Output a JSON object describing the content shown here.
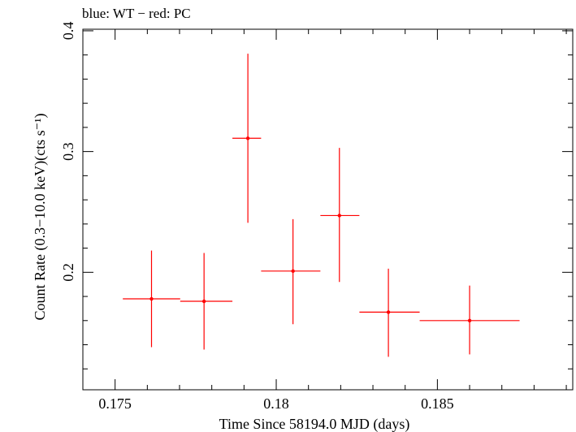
{
  "chart_data": {
    "type": "scatter",
    "title": "blue: WT − red: PC",
    "xlabel": "Time Since 58194.0 MJD (days)",
    "ylabel": "Count Rate (0.3−10.0 keV)(cts s⁻¹)",
    "xlim": [
      0.174,
      0.1892
    ],
    "ylim": [
      0.1027,
      0.4013
    ],
    "x_ticks": [
      {
        "value": 0.175,
        "label": "0.175"
      },
      {
        "value": 0.18,
        "label": "0.18"
      },
      {
        "value": 0.185,
        "label": "0.185"
      }
    ],
    "y_ticks": [
      {
        "value": 0.2,
        "label": "0.2"
      },
      {
        "value": 0.3,
        "label": "0.3"
      },
      {
        "value": 0.4,
        "label": "0.4"
      }
    ],
    "x_minor_step": 0.001,
    "y_minor_step": 0.02,
    "grid": false,
    "series": [
      {
        "name": "PC",
        "color": "#ff0000",
        "points": [
          {
            "x": 0.17613,
            "y": 0.178,
            "x_minus": 0.17524,
            "x_plus": 0.17702,
            "y_minus": 0.138,
            "y_plus": 0.218
          },
          {
            "x": 0.17776,
            "y": 0.176,
            "x_minus": 0.17702,
            "x_plus": 0.17864,
            "y_minus": 0.136,
            "y_plus": 0.216
          },
          {
            "x": 0.17912,
            "y": 0.311,
            "x_minus": 0.17864,
            "x_plus": 0.17953,
            "y_minus": 0.241,
            "y_plus": 0.381
          },
          {
            "x": 0.18052,
            "y": 0.201,
            "x_minus": 0.17953,
            "x_plus": 0.18137,
            "y_minus": 0.157,
            "y_plus": 0.244
          },
          {
            "x": 0.18196,
            "y": 0.247,
            "x_minus": 0.18137,
            "x_plus": 0.18258,
            "y_minus": 0.192,
            "y_plus": 0.303
          },
          {
            "x": 0.18348,
            "y": 0.167,
            "x_minus": 0.18258,
            "x_plus": 0.18445,
            "y_minus": 0.13,
            "y_plus": 0.203
          },
          {
            "x": 0.186,
            "y": 0.16,
            "x_minus": 0.18445,
            "x_plus": 0.18755,
            "y_minus": 0.132,
            "y_plus": 0.189
          }
        ]
      },
      {
        "name": "WT",
        "color": "#0000ff",
        "points": []
      }
    ]
  }
}
